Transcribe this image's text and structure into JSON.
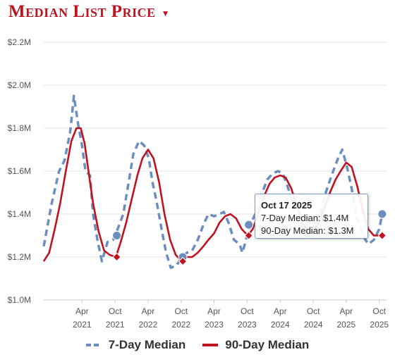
{
  "header": {
    "title": "Median List Price",
    "dropdown_icon": "caret-down-icon"
  },
  "colors": {
    "title": "#c0121f",
    "series_7day": "#6c8ebf",
    "series_90day": "#c0121f",
    "grid": "#e6e6e6",
    "tooltip_border": "#7f9cc4"
  },
  "tooltip": {
    "date": "Oct 17 2025",
    "line1": "7-Day Median: $1.4M",
    "line2": "90-Day Median: $1.3M"
  },
  "legend": {
    "items": [
      "7-Day Median",
      "90-Day Median"
    ]
  },
  "chart_data": {
    "type": "line",
    "title": "Median List Price",
    "xlabel": "",
    "ylabel": "",
    "ylim": [
      1.0,
      2.2
    ],
    "xlim": [
      "2020-09-01",
      "2025-11-10"
    ],
    "y_ticks": [
      "$1.0M",
      "$1.2M",
      "$1.4M",
      "$1.6M",
      "$1.8M",
      "$2.0M",
      "$2.2M"
    ],
    "y_tick_values": [
      1.0,
      1.2,
      1.4,
      1.6,
      1.8,
      2.0,
      2.2
    ],
    "x_ticks": [
      {
        "date": "2021-04-01",
        "month": "Apr",
        "year": "2021"
      },
      {
        "date": "2021-10-01",
        "month": "Oct",
        "year": "2021"
      },
      {
        "date": "2022-04-01",
        "month": "Apr",
        "year": "2022"
      },
      {
        "date": "2022-10-01",
        "month": "Oct",
        "year": "2022"
      },
      {
        "date": "2023-04-01",
        "month": "Apr",
        "year": "2023"
      },
      {
        "date": "2023-10-01",
        "month": "Oct",
        "year": "2023"
      },
      {
        "date": "2024-04-01",
        "month": "Apr",
        "year": "2024"
      },
      {
        "date": "2024-10-01",
        "month": "Oct",
        "year": "2024"
      },
      {
        "date": "2025-04-01",
        "month": "Apr",
        "year": "2025"
      },
      {
        "date": "2025-10-01",
        "month": "Oct",
        "year": "2025"
      }
    ],
    "grid": "horizontal",
    "legend_position": "bottom",
    "series": [
      {
        "name": "7-Day Median",
        "style": "dashed",
        "points": [
          [
            "2020-09-01",
            1.25
          ],
          [
            "2020-10-15",
            1.45
          ],
          [
            "2020-11-25",
            1.6
          ],
          [
            "2020-12-25",
            1.65
          ],
          [
            "2021-01-25",
            1.78
          ],
          [
            "2021-02-15",
            1.95
          ],
          [
            "2021-03-10",
            1.82
          ],
          [
            "2021-04-01",
            1.72
          ],
          [
            "2021-04-20",
            1.6
          ],
          [
            "2021-05-15",
            1.58
          ],
          [
            "2021-06-01",
            1.4
          ],
          [
            "2021-06-25",
            1.28
          ],
          [
            "2021-07-20",
            1.18
          ],
          [
            "2021-08-20",
            1.27
          ],
          [
            "2021-09-20",
            1.28
          ],
          [
            "2021-10-15",
            1.33
          ],
          [
            "2021-11-15",
            1.4
          ],
          [
            "2021-12-15",
            1.55
          ],
          [
            "2022-01-10",
            1.68
          ],
          [
            "2022-02-10",
            1.74
          ],
          [
            "2022-03-10",
            1.72
          ],
          [
            "2022-04-05",
            1.66
          ],
          [
            "2022-04-25",
            1.55
          ],
          [
            "2022-05-20",
            1.45
          ],
          [
            "2022-06-15",
            1.33
          ],
          [
            "2022-07-10",
            1.22
          ],
          [
            "2022-08-05",
            1.15
          ],
          [
            "2022-09-05",
            1.16
          ],
          [
            "2022-10-05",
            1.2
          ],
          [
            "2022-11-01",
            1.22
          ],
          [
            "2022-12-01",
            1.23
          ],
          [
            "2023-01-01",
            1.28
          ],
          [
            "2023-02-01",
            1.35
          ],
          [
            "2023-03-01",
            1.4
          ],
          [
            "2023-04-01",
            1.39
          ],
          [
            "2023-05-01",
            1.4
          ],
          [
            "2023-05-25",
            1.41
          ],
          [
            "2023-06-20",
            1.36
          ],
          [
            "2023-07-20",
            1.28
          ],
          [
            "2023-08-20",
            1.26
          ],
          [
            "2023-09-05",
            1.22
          ],
          [
            "2023-10-17",
            1.35
          ],
          [
            "2023-11-15",
            1.4
          ],
          [
            "2023-12-15",
            1.48
          ],
          [
            "2024-01-20",
            1.56
          ],
          [
            "2024-02-20",
            1.59
          ],
          [
            "2024-03-20",
            1.6
          ],
          [
            "2024-04-15",
            1.59
          ],
          [
            "2024-05-15",
            1.52
          ],
          [
            "2024-06-20",
            1.41
          ],
          [
            "2024-07-20",
            1.33
          ],
          [
            "2024-08-20",
            1.3
          ],
          [
            "2024-09-25",
            1.3
          ],
          [
            "2024-10-25",
            1.35
          ],
          [
            "2024-12-01",
            1.48
          ],
          [
            "2025-01-10",
            1.58
          ],
          [
            "2025-02-15",
            1.66
          ],
          [
            "2025-03-10",
            1.7
          ],
          [
            "2025-04-05",
            1.62
          ],
          [
            "2025-05-01",
            1.52
          ],
          [
            "2025-06-01",
            1.38
          ],
          [
            "2025-07-01",
            1.3
          ],
          [
            "2025-08-01",
            1.26
          ],
          [
            "2025-09-01",
            1.28
          ],
          [
            "2025-10-01",
            1.33
          ],
          [
            "2025-10-17",
            1.4
          ]
        ],
        "markers": [
          [
            "2021-10-10",
            1.3
          ],
          [
            "2022-10-10",
            1.2
          ],
          [
            "2023-10-10",
            1.35
          ],
          [
            "2025-10-17",
            1.4
          ]
        ]
      },
      {
        "name": "90-Day Median",
        "style": "solid",
        "points": [
          [
            "2020-09-01",
            1.18
          ],
          [
            "2020-10-01",
            1.22
          ],
          [
            "2020-11-01",
            1.33
          ],
          [
            "2020-12-01",
            1.45
          ],
          [
            "2021-01-01",
            1.6
          ],
          [
            "2021-02-01",
            1.74
          ],
          [
            "2021-03-01",
            1.8
          ],
          [
            "2021-03-25",
            1.8
          ],
          [
            "2021-04-15",
            1.73
          ],
          [
            "2021-05-10",
            1.58
          ],
          [
            "2021-06-01",
            1.45
          ],
          [
            "2021-07-01",
            1.32
          ],
          [
            "2021-08-01",
            1.23
          ],
          [
            "2021-09-01",
            1.21
          ],
          [
            "2021-10-05",
            1.2
          ],
          [
            "2021-11-01",
            1.27
          ],
          [
            "2021-12-01",
            1.36
          ],
          [
            "2022-01-01",
            1.47
          ],
          [
            "2022-02-01",
            1.58
          ],
          [
            "2022-03-01",
            1.66
          ],
          [
            "2022-04-01",
            1.7
          ],
          [
            "2022-05-01",
            1.66
          ],
          [
            "2022-06-01",
            1.55
          ],
          [
            "2022-07-01",
            1.4
          ],
          [
            "2022-08-01",
            1.28
          ],
          [
            "2022-09-01",
            1.21
          ],
          [
            "2022-10-05",
            1.18
          ],
          [
            "2022-11-01",
            1.2
          ],
          [
            "2022-12-01",
            1.2
          ],
          [
            "2023-01-01",
            1.22
          ],
          [
            "2023-02-01",
            1.25
          ],
          [
            "2023-03-01",
            1.28
          ],
          [
            "2023-04-01",
            1.31
          ],
          [
            "2023-05-01",
            1.36
          ],
          [
            "2023-06-01",
            1.39
          ],
          [
            "2023-07-01",
            1.4
          ],
          [
            "2023-08-01",
            1.38
          ],
          [
            "2023-09-01",
            1.33
          ],
          [
            "2023-10-05",
            1.3
          ],
          [
            "2023-11-01",
            1.33
          ],
          [
            "2023-12-01",
            1.4
          ],
          [
            "2024-01-01",
            1.48
          ],
          [
            "2024-02-01",
            1.54
          ],
          [
            "2024-03-01",
            1.57
          ],
          [
            "2024-04-01",
            1.58
          ],
          [
            "2024-05-01",
            1.57
          ],
          [
            "2024-06-01",
            1.52
          ],
          [
            "2024-07-01",
            1.44
          ],
          [
            "2024-08-01",
            1.36
          ],
          [
            "2024-09-01",
            1.32
          ],
          [
            "2024-10-01",
            1.31
          ],
          [
            "2024-11-01",
            1.36
          ],
          [
            "2024-12-01",
            1.43
          ],
          [
            "2025-01-01",
            1.5
          ],
          [
            "2025-02-01",
            1.56
          ],
          [
            "2025-03-01",
            1.6
          ],
          [
            "2025-04-01",
            1.64
          ],
          [
            "2025-05-01",
            1.62
          ],
          [
            "2025-06-01",
            1.53
          ],
          [
            "2025-07-01",
            1.42
          ],
          [
            "2025-08-01",
            1.33
          ],
          [
            "2025-09-01",
            1.3
          ],
          [
            "2025-10-17",
            1.3
          ]
        ],
        "markers": [
          [
            "2021-10-10",
            1.2
          ],
          [
            "2022-10-10",
            1.18
          ],
          [
            "2023-10-10",
            1.3
          ],
          [
            "2025-10-17",
            1.3
          ]
        ]
      }
    ]
  }
}
